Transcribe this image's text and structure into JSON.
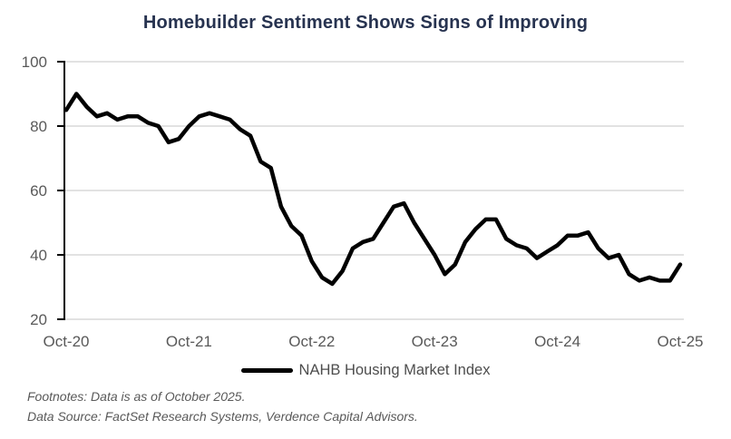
{
  "title": "Homebuilder Sentiment Shows Signs of Improving",
  "legend": {
    "label": "NAHB Housing Market Index"
  },
  "footnotes": {
    "line1": "Footnotes: Data is as of October 2025.",
    "line2": "Data Source: FactSet Research Systems, Verdence Capital Advisors."
  },
  "colors": {
    "title": "#273350",
    "line": "#000000",
    "gridline": "#d9d9d9",
    "axis": "#000000",
    "axis_labels": "#595959",
    "legend_text": "#4d4d4d",
    "footnote_text": "#595959",
    "background": "#ffffff"
  },
  "chart_data": {
    "type": "line",
    "title": "Homebuilder Sentiment Shows Signs of Improving",
    "x_labels_monthly": [
      "Oct-20",
      "Nov-20",
      "Dec-20",
      "Jan-21",
      "Feb-21",
      "Mar-21",
      "Apr-21",
      "May-21",
      "Jun-21",
      "Jul-21",
      "Aug-21",
      "Sep-21",
      "Oct-21",
      "Nov-21",
      "Dec-21",
      "Jan-22",
      "Feb-22",
      "Mar-22",
      "Apr-22",
      "May-22",
      "Jun-22",
      "Jul-22",
      "Aug-22",
      "Sep-22",
      "Oct-22",
      "Nov-22",
      "Dec-22",
      "Jan-23",
      "Feb-23",
      "Mar-23",
      "Apr-23",
      "May-23",
      "Jun-23",
      "Jul-23",
      "Aug-23",
      "Sep-23",
      "Oct-23",
      "Nov-23",
      "Dec-23",
      "Jan-24",
      "Feb-24",
      "Mar-24",
      "Apr-24",
      "May-24",
      "Jun-24",
      "Jul-24",
      "Aug-24",
      "Sep-24",
      "Oct-24",
      "Nov-24",
      "Dec-24",
      "Jan-25",
      "Feb-25",
      "Mar-25",
      "Apr-25",
      "May-25",
      "Jun-25",
      "Jul-25",
      "Aug-25",
      "Sep-25",
      "Oct-25"
    ],
    "series": [
      {
        "name": "NAHB Housing Market Index",
        "color": "#000000",
        "values": [
          85,
          90,
          86,
          83,
          84,
          82,
          83,
          83,
          81,
          80,
          75,
          76,
          80,
          83,
          84,
          83,
          82,
          79,
          77,
          69,
          67,
          55,
          49,
          46,
          38,
          33,
          31,
          35,
          42,
          44,
          45,
          50,
          55,
          56,
          50,
          45,
          40,
          34,
          37,
          44,
          48,
          51,
          51,
          45,
          43,
          42,
          39,
          41,
          43,
          46,
          46,
          47,
          42,
          39,
          40,
          34,
          32,
          33,
          32,
          32,
          37
        ]
      }
    ],
    "x_tick_labels": [
      "Oct-20",
      "Oct-21",
      "Oct-22",
      "Oct-23",
      "Oct-24",
      "Oct-25"
    ],
    "x_tick_indexes": [
      0,
      12,
      24,
      36,
      48,
      60
    ],
    "y_ticks": [
      20,
      40,
      60,
      80,
      100
    ],
    "ylim": [
      20,
      100
    ],
    "grid": "horizontal-only",
    "legend_position": "bottom-center"
  }
}
